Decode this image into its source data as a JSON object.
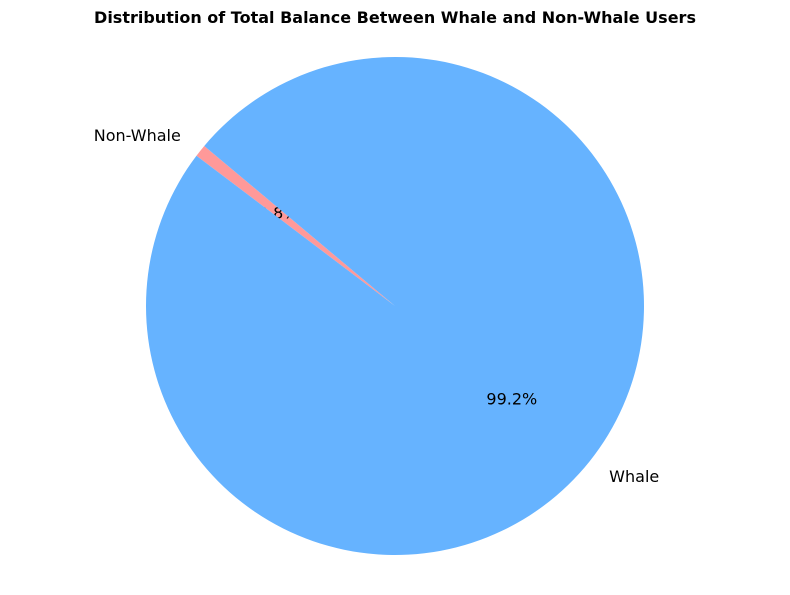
{
  "chart_data": {
    "type": "pie",
    "title": "Distribution of Total Balance Between Whale and Non-Whale Users",
    "slices": [
      {
        "label": "Non-Whale",
        "value": 0.8,
        "pct_label": "0.8%",
        "color": "#ff9999"
      },
      {
        "label": "Whale",
        "value": 99.2,
        "pct_label": "99.2%",
        "color": "#66b3ff"
      }
    ],
    "start_angle_deg": 140,
    "direction": "counterclockwise"
  }
}
